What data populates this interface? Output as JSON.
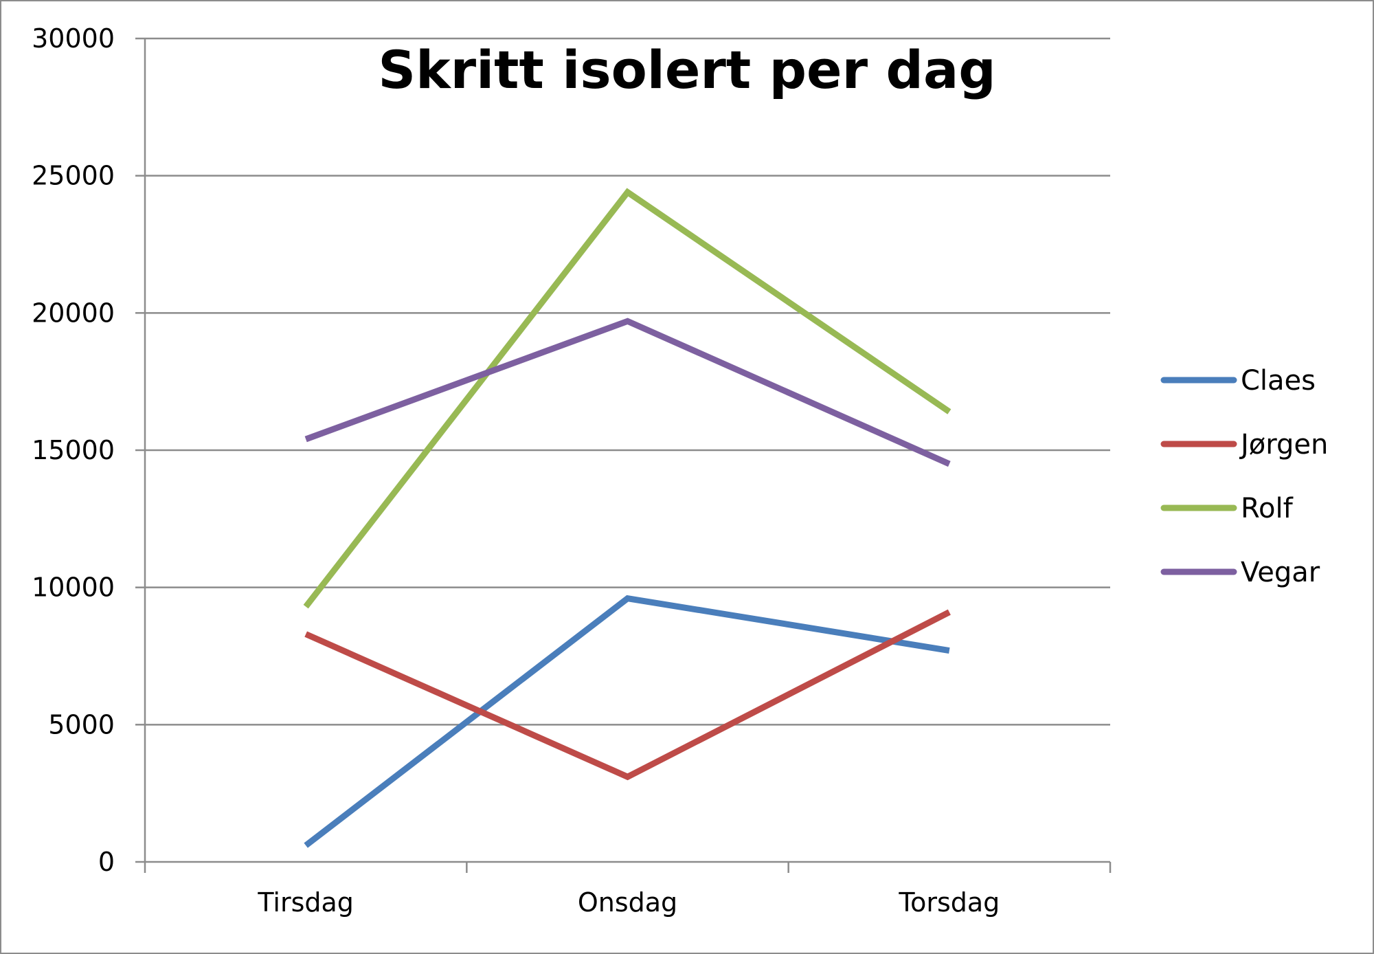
{
  "chart_data": {
    "type": "line",
    "title": "Skritt isolert per dag",
    "xlabel": "",
    "ylabel": "",
    "categories": [
      "Tirsdag",
      "Onsdag",
      "Torsdag"
    ],
    "ylim": [
      0,
      30000
    ],
    "yticks": [
      0,
      5000,
      10000,
      15000,
      20000,
      25000,
      30000
    ],
    "grid": true,
    "legend_position": "right",
    "series": [
      {
        "name": "Claes",
        "color": "#4a7ebb",
        "values": [
          600,
          9600,
          7700
        ]
      },
      {
        "name": "Jørgen",
        "color": "#be4b48",
        "values": [
          8300,
          3100,
          9100
        ]
      },
      {
        "name": "Rolf",
        "color": "#98b954",
        "values": [
          9300,
          24400,
          16400
        ]
      },
      {
        "name": "Vegar",
        "color": "#7d60a0",
        "values": [
          15400,
          19700,
          14500
        ]
      }
    ]
  }
}
